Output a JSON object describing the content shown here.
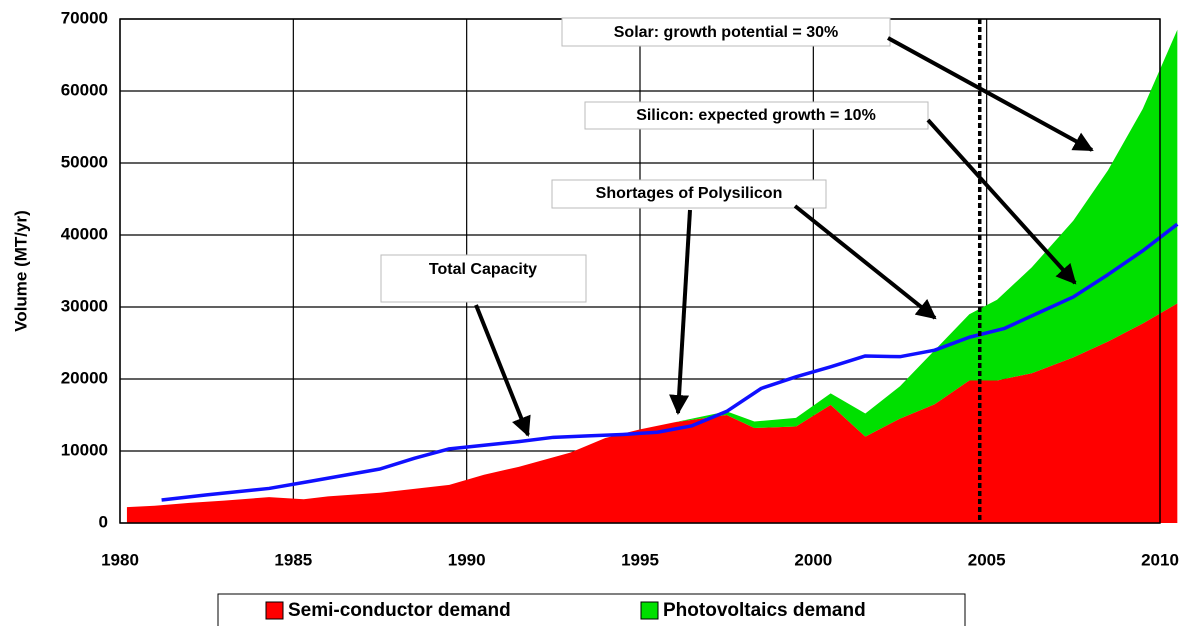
{
  "chart_data": {
    "type": "stacked_area_line",
    "y_axis_label": "Volume (MT/yr)",
    "xlim": [
      1980,
      2010
    ],
    "xticks": [
      1980,
      1985,
      1990,
      1995,
      2000,
      2005,
      2010
    ],
    "ylim": [
      0,
      70000
    ],
    "yticks": [
      0,
      10000,
      20000,
      30000,
      40000,
      50000,
      60000,
      70000
    ],
    "grid": true,
    "reference_line_x": 2004.8,
    "series": [
      {
        "name": "Semi-conductor demand",
        "color": "#ff0000",
        "kind": "area",
        "x": [
          1980.2,
          1981,
          1982,
          1983,
          1984.3,
          1985.3,
          1986,
          1987.5,
          1989.5,
          1990.5,
          1991.5,
          1993,
          1994,
          1995,
          1996,
          1997.5,
          1998.3,
          1999.5,
          2000.5,
          2001.5,
          2002.5,
          2003.5,
          2004.5,
          2005.3,
          2006.3,
          2007.5,
          2008.5,
          2009.5,
          2010.5
        ],
        "values": [
          2200,
          2400,
          2800,
          3100,
          3600,
          3300,
          3700,
          4200,
          5300,
          6700,
          7800,
          9800,
          11800,
          13000,
          14000,
          15000,
          13200,
          13400,
          16400,
          12000,
          14500,
          16500,
          19800,
          19800,
          20800,
          23000,
          25200,
          27700,
          30500
        ]
      },
      {
        "name": "Photovoltaics demand",
        "color": "#00e000",
        "kind": "area",
        "x": [
          1980.2,
          1981,
          1982,
          1983,
          1984.3,
          1985.3,
          1986,
          1987.5,
          1989.5,
          1990.5,
          1991.5,
          1993,
          1994,
          1995,
          1996,
          1997.5,
          1998.3,
          1999.5,
          2000.5,
          2001.5,
          2002.5,
          2003.5,
          2004.5,
          2005.3,
          2006.3,
          2007.5,
          2008.5,
          2009.5,
          2010.5
        ],
        "values": [
          0,
          0,
          0,
          0,
          0,
          0,
          0,
          0,
          0,
          0,
          0,
          0,
          0,
          0,
          0,
          500,
          900,
          1200,
          1600,
          3200,
          4500,
          7500,
          9200,
          11200,
          14700,
          19000,
          23800,
          29800,
          38000
        ]
      },
      {
        "name": "Total Capacity",
        "color": "#1010ff",
        "kind": "line",
        "x": [
          1981.2,
          1982.5,
          1984.3,
          1985.5,
          1987.5,
          1988.5,
          1989.5,
          1990.5,
          1991.5,
          1992.5,
          1993.5,
          1994.5,
          1995.5,
          1996.5,
          1997.5,
          1998.5,
          1999.5,
          2000.5,
          2001.5,
          2002.5,
          2003.5,
          2004.5,
          2005.5,
          2006.5,
          2007.5,
          2008.5,
          2009.5,
          2010.5
        ],
        "values": [
          3200,
          3900,
          4800,
          5800,
          7500,
          9000,
          10300,
          10800,
          11300,
          11900,
          12100,
          12300,
          12600,
          13500,
          15500,
          18700,
          20300,
          21700,
          23200,
          23100,
          24000,
          25800,
          27000,
          29200,
          31400,
          34500,
          37800,
          41500
        ]
      }
    ],
    "annotations": [
      "Solar: growth potential  = 30%",
      "Silicon: expected growth = 10%",
      "Shortages of Polysilicon",
      "Total Capacity"
    ]
  }
}
